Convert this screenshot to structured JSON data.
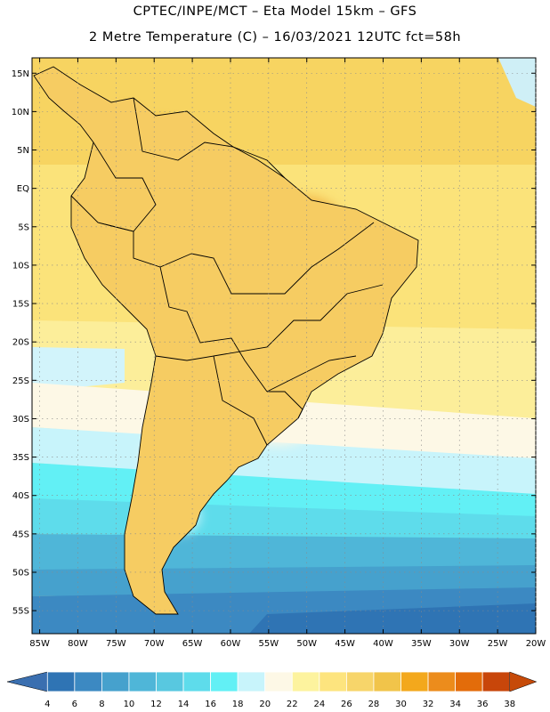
{
  "header": {
    "line1": "CPTEC/INPE/MCT –   Eta Model 15km – GFS",
    "line2": "2 Metre Temperature (C) – 16/03/2021 12UTC fct=58h"
  },
  "map": {
    "lat_range": [
      -58,
      17
    ],
    "lon_range": [
      -86,
      -20
    ],
    "lat_ticks": [
      {
        "value": 15,
        "label": "15N"
      },
      {
        "value": 10,
        "label": "10N"
      },
      {
        "value": 5,
        "label": "5N"
      },
      {
        "value": 0,
        "label": "EQ"
      },
      {
        "value": -5,
        "label": "5S"
      },
      {
        "value": -10,
        "label": "10S"
      },
      {
        "value": -15,
        "label": "15S"
      },
      {
        "value": -20,
        "label": "20S"
      },
      {
        "value": -25,
        "label": "25S"
      },
      {
        "value": -30,
        "label": "30S"
      },
      {
        "value": -35,
        "label": "35S"
      },
      {
        "value": -40,
        "label": "40S"
      },
      {
        "value": -45,
        "label": "45S"
      },
      {
        "value": -50,
        "label": "50S"
      },
      {
        "value": -55,
        "label": "55S"
      }
    ],
    "lon_ticks": [
      {
        "value": -85,
        "label": "85W"
      },
      {
        "value": -80,
        "label": "80W"
      },
      {
        "value": -75,
        "label": "75W"
      },
      {
        "value": -70,
        "label": "70W"
      },
      {
        "value": -65,
        "label": "65W"
      },
      {
        "value": -60,
        "label": "60W"
      },
      {
        "value": -55,
        "label": "55W"
      },
      {
        "value": -50,
        "label": "50W"
      },
      {
        "value": -45,
        "label": "45W"
      },
      {
        "value": -40,
        "label": "40W"
      },
      {
        "value": -35,
        "label": "35W"
      },
      {
        "value": -30,
        "label": "30W"
      },
      {
        "value": -25,
        "label": "25W"
      },
      {
        "value": -20,
        "label": "20W"
      }
    ],
    "gridlines": "dotted"
  },
  "colorbar": {
    "labels": [
      "4",
      "6",
      "8",
      "10",
      "12",
      "14",
      "16",
      "18",
      "20",
      "22",
      "24",
      "26",
      "28",
      "30",
      "32",
      "34",
      "36",
      "38"
    ],
    "colors": [
      "#2f74b4",
      "#3c89c2",
      "#46a1cd",
      "#4fb6d8",
      "#58c8e0",
      "#5edceb",
      "#62f0f5",
      "#c8f4fb",
      "#fdf8e6",
      "#fdf39e",
      "#fde47e",
      "#f7d56a",
      "#f1c44a",
      "#f3a81c",
      "#ec8c1c",
      "#e36c0a",
      "#c8460a"
    ],
    "under_color": "#3a6fb0",
    "over_color": "#c64a08"
  }
}
